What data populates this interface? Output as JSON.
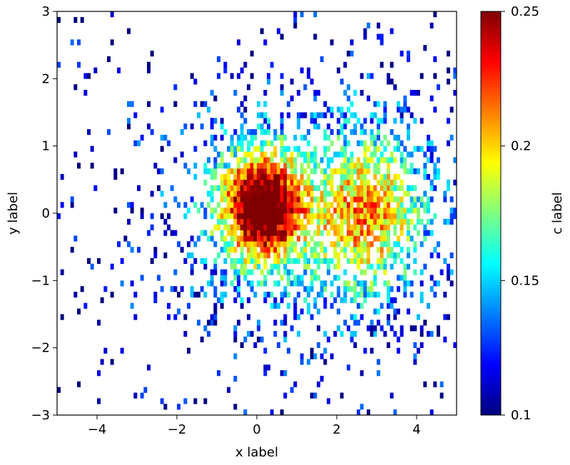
{
  "chart_data": {
    "type": "heatmap",
    "title": "",
    "xlabel": "x label",
    "ylabel": "y label",
    "clabel": "c label",
    "xlim": [
      -5,
      5
    ],
    "ylim": [
      -3,
      3
    ],
    "clim": [
      0.1,
      0.25
    ],
    "colormap": "jet",
    "colormap_stops": [
      "#00007f",
      "#0000ff",
      "#007fff",
      "#00ffff",
      "#7fff7f",
      "#ffff00",
      "#ff7f00",
      "#ff0000",
      "#7f0000"
    ],
    "x_ticks": [
      -4,
      -2,
      0,
      2,
      4
    ],
    "x_tick_labels": [
      "−4",
      "−2",
      "0",
      "2",
      "4"
    ],
    "y_ticks": [
      -3,
      -2,
      -1,
      0,
      1,
      2,
      3
    ],
    "y_tick_labels": [
      "−3",
      "−2",
      "−1",
      "0",
      "1",
      "2",
      "3"
    ],
    "c_ticks": [
      0.1,
      0.15,
      0.2,
      0.25
    ],
    "c_tick_labels": [
      "0.1",
      "0.15",
      "0.2",
      "0.25"
    ],
    "grid": false,
    "bins": {
      "nx": 120,
      "ny": 72
    },
    "blobs": [
      {
        "cx": 0.1,
        "cy": 0.1,
        "sx": 0.7,
        "sy": 0.55,
        "amp": 1.0
      },
      {
        "cx": 2.8,
        "cy": 0.0,
        "sx": 0.9,
        "sy": 0.8,
        "amp": 0.45
      },
      {
        "cx": 1.5,
        "cy": 0.0,
        "sx": 2.6,
        "sy": 1.2,
        "amp": 0.35
      }
    ]
  }
}
